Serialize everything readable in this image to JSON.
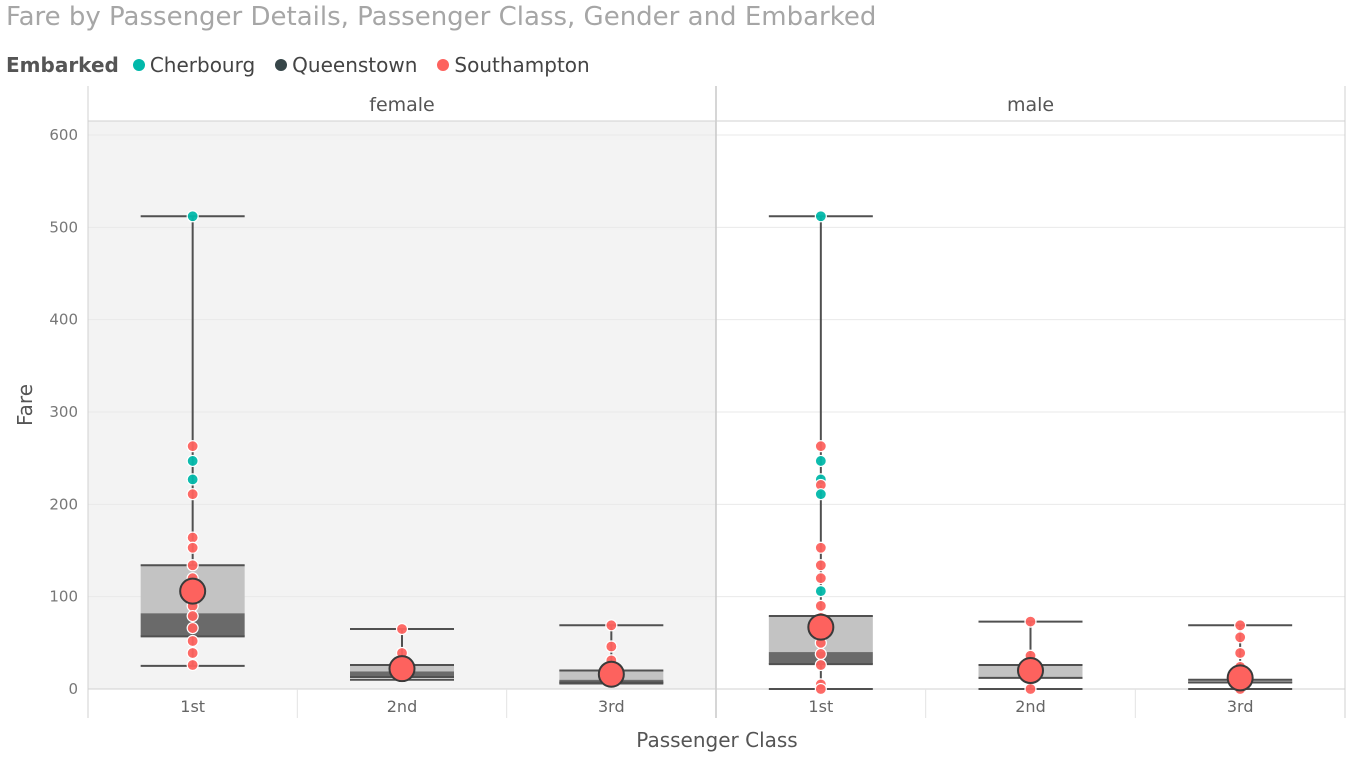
{
  "title": "Fare by Passenger Details, Passenger Class, Gender and Embarked",
  "legend": {
    "title": "Embarked",
    "items": [
      {
        "label": "Cherbourg",
        "color": "#01B8AA"
      },
      {
        "label": "Queenstown",
        "color": "#374649"
      },
      {
        "label": "Southampton",
        "color": "#FD625E"
      }
    ]
  },
  "chart_data": {
    "type": "boxplot",
    "title": "Fare by Passenger Details, Passenger Class, Gender and Embarked",
    "xlabel": "Passenger Class",
    "ylabel": "Fare",
    "ylim": [
      0,
      600
    ],
    "yticks": [
      0,
      100,
      200,
      300,
      400,
      500,
      600
    ],
    "panels": [
      "female",
      "male"
    ],
    "categories": [
      "1st",
      "2nd",
      "3rd"
    ],
    "groups": [
      {
        "panel": "female",
        "category": "1st",
        "whisker_low": 25,
        "q1": 57,
        "median": 82,
        "q3": 134,
        "whisker_high": 512,
        "mean": 106,
        "points": [
          {
            "y": 512,
            "c": "Cherbourg"
          },
          {
            "y": 263,
            "c": "Southampton"
          },
          {
            "y": 247,
            "c": "Cherbourg"
          },
          {
            "y": 227,
            "c": "Cherbourg"
          },
          {
            "y": 211,
            "c": "Southampton"
          },
          {
            "y": 164,
            "c": "Southampton"
          },
          {
            "y": 153,
            "c": "Southampton"
          },
          {
            "y": 134,
            "c": "Southampton"
          },
          {
            "y": 120,
            "c": "Southampton"
          },
          {
            "y": 90,
            "c": "Southampton"
          },
          {
            "y": 79,
            "c": "Southampton"
          },
          {
            "y": 66,
            "c": "Southampton"
          },
          {
            "y": 52,
            "c": "Southampton"
          },
          {
            "y": 39,
            "c": "Southampton"
          },
          {
            "y": 26,
            "c": "Southampton"
          }
        ]
      },
      {
        "panel": "female",
        "category": "2nd",
        "whisker_low": 10,
        "q1": 13,
        "median": 19,
        "q3": 26,
        "whisker_high": 65,
        "mean": 22,
        "points": [
          {
            "y": 65,
            "c": "Southampton"
          },
          {
            "y": 39,
            "c": "Southampton"
          },
          {
            "y": 26,
            "c": "Southampton"
          },
          {
            "y": 21,
            "c": "Southampton"
          },
          {
            "y": 13,
            "c": "Southampton"
          }
        ]
      },
      {
        "panel": "female",
        "category": "3rd",
        "whisker_low": 6,
        "q1": 7,
        "median": 10,
        "q3": 20,
        "whisker_high": 69,
        "mean": 16,
        "points": [
          {
            "y": 69,
            "c": "Southampton"
          },
          {
            "y": 46,
            "c": "Southampton"
          },
          {
            "y": 31,
            "c": "Southampton"
          },
          {
            "y": 20,
            "c": "Southampton"
          },
          {
            "y": 8,
            "c": "Southampton"
          }
        ]
      },
      {
        "panel": "male",
        "category": "1st",
        "whisker_low": 0,
        "q1": 27,
        "median": 40,
        "q3": 79,
        "whisker_high": 512,
        "mean": 67,
        "points": [
          {
            "y": 512,
            "c": "Cherbourg"
          },
          {
            "y": 263,
            "c": "Southampton"
          },
          {
            "y": 247,
            "c": "Cherbourg"
          },
          {
            "y": 227,
            "c": "Cherbourg"
          },
          {
            "y": 221,
            "c": "Southampton"
          },
          {
            "y": 211,
            "c": "Cherbourg"
          },
          {
            "y": 153,
            "c": "Southampton"
          },
          {
            "y": 134,
            "c": "Southampton"
          },
          {
            "y": 120,
            "c": "Southampton"
          },
          {
            "y": 106,
            "c": "Cherbourg"
          },
          {
            "y": 90,
            "c": "Southampton"
          },
          {
            "y": 77,
            "c": "Southampton"
          },
          {
            "y": 61,
            "c": "Southampton"
          },
          {
            "y": 50,
            "c": "Southampton"
          },
          {
            "y": 38,
            "c": "Southampton"
          },
          {
            "y": 26,
            "c": "Southampton"
          },
          {
            "y": 5,
            "c": "Southampton"
          },
          {
            "y": 0,
            "c": "Southampton"
          }
        ]
      },
      {
        "panel": "male",
        "category": "2nd",
        "whisker_low": 0,
        "q1": 12,
        "median": 13,
        "q3": 26,
        "whisker_high": 73,
        "mean": 20,
        "points": [
          {
            "y": 73,
            "c": "Southampton"
          },
          {
            "y": 36,
            "c": "Southampton"
          },
          {
            "y": 26,
            "c": "Southampton"
          },
          {
            "y": 13,
            "c": "Southampton"
          },
          {
            "y": 0,
            "c": "Southampton"
          }
        ]
      },
      {
        "panel": "male",
        "category": "3rd",
        "whisker_low": 0,
        "q1": 7,
        "median": 8,
        "q3": 10,
        "whisker_high": 69,
        "mean": 12,
        "points": [
          {
            "y": 69,
            "c": "Southampton"
          },
          {
            "y": 56,
            "c": "Southampton"
          },
          {
            "y": 39,
            "c": "Southampton"
          },
          {
            "y": 24,
            "c": "Southampton"
          },
          {
            "y": 8,
            "c": "Southampton"
          },
          {
            "y": 0,
            "c": "Southampton"
          }
        ]
      }
    ]
  }
}
